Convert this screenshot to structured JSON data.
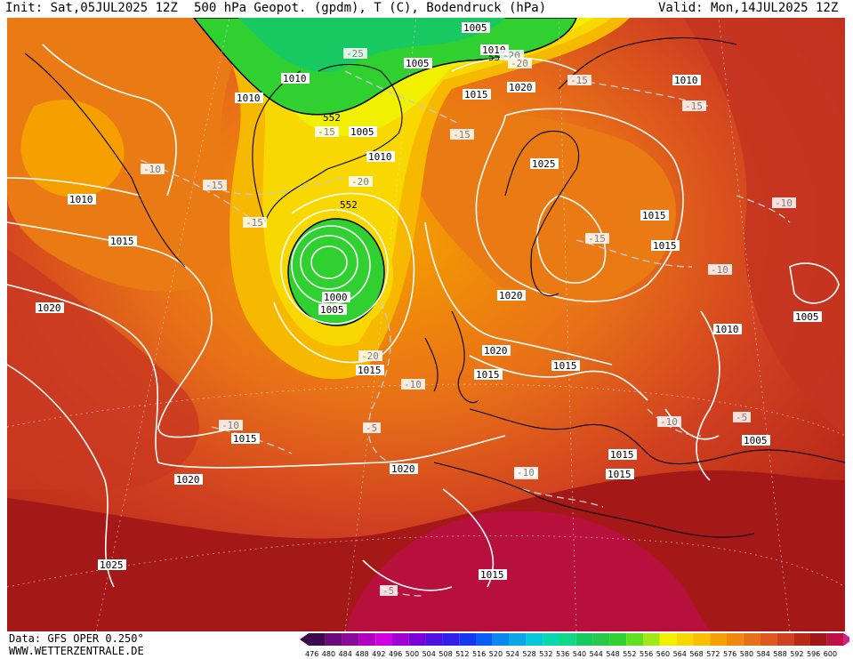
{
  "header": {
    "init": "Init: Sat,05JUL2025 12Z",
    "title": "500 hPa Geopot. (gpdm), T (C), Bodendruck (hPa)",
    "valid": "Valid: Mon,14JUL2025 12Z"
  },
  "footer": {
    "data_source": "Data: GFS OPER 0.250°",
    "website": "WWW.WETTERZENTRALE.DE"
  },
  "legend": {
    "ticks": [
      "476",
      "480",
      "484",
      "488",
      "492",
      "496",
      "500",
      "504",
      "508",
      "512",
      "516",
      "520",
      "524",
      "528",
      "532",
      "536",
      "540",
      "544",
      "548",
      "552",
      "556",
      "560",
      "564",
      "568",
      "572",
      "576",
      "580",
      "584",
      "588",
      "592",
      "596",
      "600"
    ],
    "colors": [
      "#3a0a4a",
      "#6a0a7a",
      "#8a0a9a",
      "#b000c0",
      "#d000e0",
      "#a000d0",
      "#7a00d8",
      "#5010e0",
      "#3020e8",
      "#1838f0",
      "#0a5cf5",
      "#0a88f0",
      "#08a8e8",
      "#06c8d8",
      "#08d8b0",
      "#10d888",
      "#18c860",
      "#28c848",
      "#30d030",
      "#60e020",
      "#a0e818",
      "#f0f000",
      "#f8d800",
      "#f8c000",
      "#f5a000",
      "#f08810",
      "#e87018",
      "#e05820",
      "#d04020",
      "#b82818",
      "#a01818",
      "#c0104a",
      "#d02088"
    ]
  },
  "map_labels": {
    "isobars": [
      {
        "text": "1005",
        "color": "#000"
      },
      {
        "text": "1010",
        "color": "#000"
      },
      {
        "text": "1005",
        "color": "#000"
      },
      {
        "text": "1010",
        "color": "#000"
      },
      {
        "text": "1015",
        "color": "#000"
      },
      {
        "text": "1020",
        "color": "#000"
      },
      {
        "text": "1010",
        "color": "#000"
      },
      {
        "text": "1005",
        "color": "#000"
      },
      {
        "text": "1010",
        "color": "#000"
      },
      {
        "text": "1025",
        "color": "#000"
      },
      {
        "text": "1010",
        "color": "#000"
      },
      {
        "text": "1010",
        "color": "#000"
      },
      {
        "text": "1015",
        "color": "#000"
      },
      {
        "text": "1015",
        "color": "#000"
      },
      {
        "text": "1015",
        "color": "#000"
      },
      {
        "text": "1020",
        "color": "#000"
      },
      {
        "text": "1000",
        "color": "#000"
      },
      {
        "text": "1005",
        "color": "#000"
      },
      {
        "text": "1020",
        "color": "#000"
      },
      {
        "text": "1010",
        "color": "#000"
      },
      {
        "text": "1005",
        "color": "#000"
      },
      {
        "text": "1020",
        "color": "#000"
      },
      {
        "text": "1015",
        "color": "#000"
      },
      {
        "text": "1015",
        "color": "#000"
      },
      {
        "text": "1015",
        "color": "#000"
      },
      {
        "text": "1015",
        "color": "#000"
      },
      {
        "text": "1005",
        "color": "#000"
      },
      {
        "text": "1020",
        "color": "#000"
      },
      {
        "text": "1015",
        "color": "#000"
      },
      {
        "text": "1020",
        "color": "#000"
      },
      {
        "text": "1015",
        "color": "#000"
      },
      {
        "text": "1025",
        "color": "#000"
      },
      {
        "text": "1015",
        "color": "#000"
      }
    ],
    "temps": [
      "-25",
      "-20",
      "-15",
      "-15",
      "-20",
      "-15",
      "-10",
      "-15",
      "-20",
      "-15",
      "-10",
      "-15",
      "-10",
      "-15",
      "-20",
      "-10",
      "-10",
      "-5",
      "-10",
      "-10",
      "-5",
      "-5",
      "-10"
    ],
    "geopot": [
      "552",
      "552",
      "552"
    ]
  }
}
